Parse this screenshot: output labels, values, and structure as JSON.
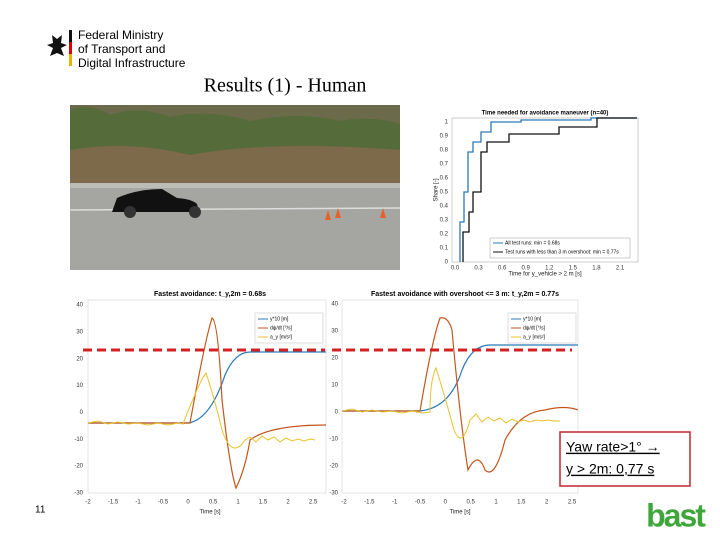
{
  "header": {
    "ministry": [
      "Federal Ministry",
      "of Transport and",
      "Digital Infrastructure"
    ],
    "title": "Results (1) - Human"
  },
  "top_chart": {
    "title": "Time needed for avoidance maneuver (n=40)",
    "ylabel": "Share [-]",
    "xlabel": "Time for y_vehicle > 2 m [s]",
    "yticks": [
      "1",
      "0.9",
      "0.8",
      "0.7",
      "0.6",
      "0.5",
      "0.4",
      "0.3",
      "0.2",
      "0.1",
      "0"
    ],
    "xticks": [
      "0.0",
      "0.3",
      "0.6",
      "0.9",
      "1.2",
      "1.5",
      "1.8",
      "2.1"
    ],
    "legend": [
      "All test runs: min = 0.68s",
      "Test runs with less than 3 m overshoot: min = 0.77s"
    ]
  },
  "left_chart": {
    "title": "Fastest avoidance: t_y,2m = 0.68s",
    "xlabel": "Time [s]",
    "yticks": [
      "40",
      "30",
      "20",
      "10",
      "0",
      "-10",
      "-20",
      "-30"
    ],
    "xticks": [
      "-2",
      "-1.5",
      "-1",
      "-0.5",
      "0",
      "0.5",
      "1",
      "1.5",
      "2",
      "2.5"
    ],
    "legend": [
      "y*10 [m]",
      "dψ/dt [°/s]",
      "a_y [m/s²]"
    ]
  },
  "right_chart": {
    "title": "Fastest avoidance with overshoot <= 3 m: t_y,2m = 0.77s",
    "xlabel": "Time [s]",
    "yticks": [
      "40",
      "30",
      "20",
      "10",
      "0",
      "-10",
      "-20",
      "-30"
    ],
    "xticks": [
      "-2",
      "-1.5",
      "-1",
      "-0.5",
      "0",
      "0.5",
      "1",
      "1.5",
      "2",
      "2.5"
    ],
    "legend": [
      "y*10 [m]",
      "dψ/dt [°/s]",
      "a_y [m/s²]"
    ]
  },
  "callout": [
    "Yaw rate>1° → ",
    "y > 2m: 0,77 s"
  ],
  "slide_number": "11",
  "logo": "bast"
}
